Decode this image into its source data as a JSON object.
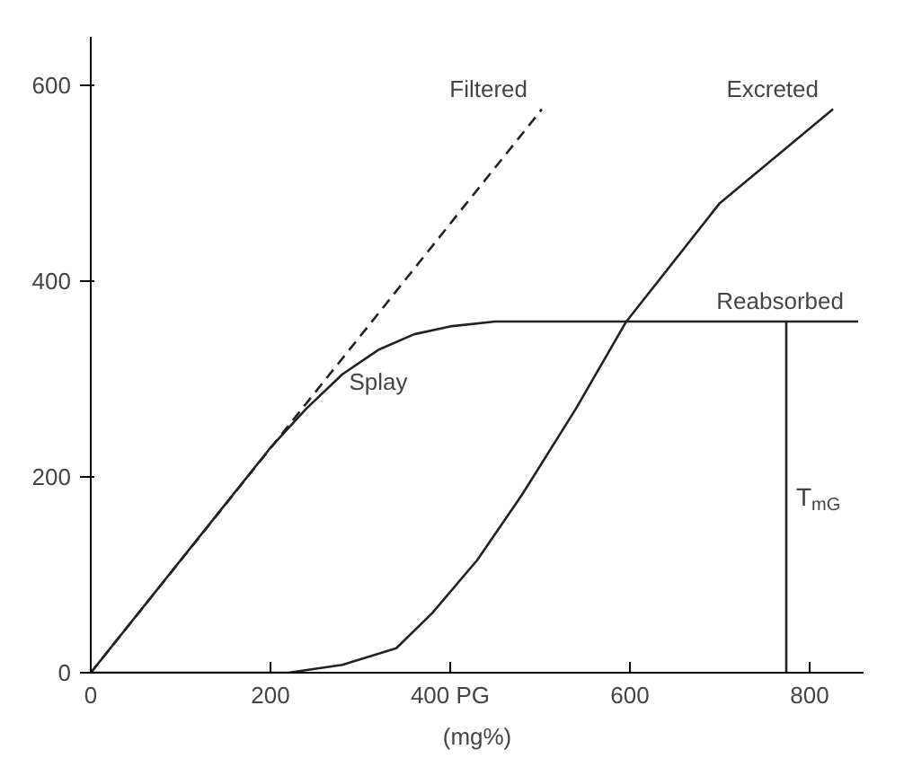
{
  "chart_data": {
    "type": "line",
    "xlabel": "(mg%)",
    "xlim": [
      0,
      860
    ],
    "ylim": [
      0,
      650
    ],
    "xticks": [
      0,
      200,
      {
        "value": 400,
        "label": "400 PG"
      },
      600,
      800
    ],
    "yticks": [
      0,
      200,
      400,
      600
    ],
    "grid": false,
    "series": [
      {
        "name": "Filtered",
        "color": "#222222",
        "line_style": "dashed",
        "x": [
          0,
          502
        ],
        "values": [
          0,
          576
        ]
      },
      {
        "name": "Reabsorbed",
        "color": "#222222",
        "line_style": "solid",
        "x": [
          0,
          200,
          240,
          280,
          320,
          360,
          400,
          450,
          854
        ],
        "values": [
          0,
          230,
          270,
          305,
          330,
          346,
          354,
          359,
          359
        ]
      },
      {
        "name": "Excreted",
        "color": "#222222",
        "line_style": "solid",
        "x": [
          0,
          220,
          280,
          340,
          380,
          430,
          480,
          540,
          596,
          700,
          826
        ],
        "values": [
          0,
          0,
          8,
          25,
          61,
          115,
          182,
          270,
          359,
          480,
          576
        ]
      },
      {
        "color": "#222222",
        "line_style": "solid",
        "x": [
          774,
          774
        ],
        "values": [
          0,
          359
        ]
      }
    ],
    "annotations": [
      {
        "text": "Splay",
        "x": 320,
        "y": 330
      },
      {
        "text": "T$_{mG}$",
        "x": 774,
        "y": 180
      }
    ]
  }
}
